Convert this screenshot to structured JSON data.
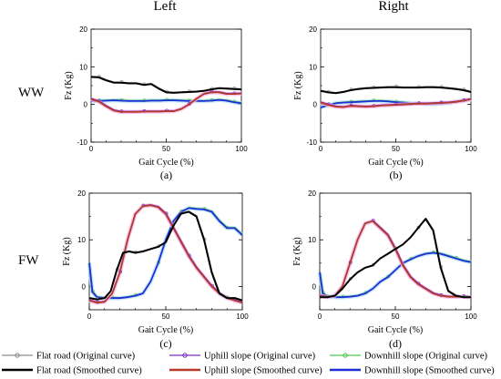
{
  "figure": {
    "column_titles": [
      "Left",
      "Right"
    ],
    "row_labels": [
      "WW",
      "FW"
    ],
    "panel_letters": [
      "a",
      "b",
      "c",
      "d"
    ]
  },
  "legend": [
    {
      "label": "Flat road (Original curve)",
      "color": "#8c8c8c",
      "marker": "circle"
    },
    {
      "label": "Uphill slope (Original curve)",
      "color": "#7a2fc0",
      "marker": "circle"
    },
    {
      "label": "Downhill slope (Original curve)",
      "color": "#4ec84e",
      "marker": "circle"
    },
    {
      "label": "Flat road (Smoothed curve)",
      "color": "#000000",
      "marker": "none"
    },
    {
      "label": "Uphill slope (Smoothed curve)",
      "color": "#b53a2a",
      "marker": "none"
    },
    {
      "label": "Downhill slope (Smoothed curve)",
      "color": "#1f2fd6",
      "marker": "none"
    }
  ],
  "chart_data": [
    {
      "type": "line",
      "panel": "a",
      "column": "Left",
      "row": "WW",
      "xlabel": "Gait Cycle (%)",
      "ylabel": "Fz (Kg)",
      "xlim": [
        0,
        100
      ],
      "ylim": [
        -10,
        20
      ],
      "xticks": [
        0,
        50,
        100
      ],
      "yticks": [
        -10,
        0,
        10,
        20
      ],
      "series": [
        {
          "name": "Flat road",
          "x": [
            0,
            5,
            10,
            15,
            20,
            25,
            30,
            35,
            40,
            45,
            50,
            55,
            60,
            65,
            70,
            75,
            80,
            85,
            90,
            95,
            100
          ],
          "y": [
            7.3,
            7.2,
            6.4,
            5.8,
            5.8,
            5.6,
            5.6,
            5.2,
            5.4,
            4.2,
            3.2,
            3.1,
            3.2,
            3.3,
            3.4,
            3.6,
            4.0,
            4.3,
            4.2,
            4.1,
            4.0
          ]
        },
        {
          "name": "Uphill slope",
          "x": [
            0,
            5,
            10,
            15,
            20,
            25,
            30,
            35,
            40,
            45,
            50,
            55,
            60,
            65,
            70,
            75,
            80,
            85,
            90,
            95,
            100
          ],
          "y": [
            1.4,
            0.8,
            -0.5,
            -1.6,
            -2.0,
            -2.0,
            -2.0,
            -1.9,
            -1.9,
            -1.9,
            -1.8,
            -1.8,
            -1.2,
            0.0,
            1.5,
            2.8,
            3.2,
            3.2,
            2.8,
            2.8,
            2.9
          ]
        },
        {
          "name": "Downhill slope",
          "x": [
            0,
            5,
            10,
            15,
            20,
            25,
            30,
            35,
            40,
            45,
            50,
            55,
            60,
            65,
            70,
            75,
            80,
            85,
            90,
            95,
            100
          ],
          "y": [
            0.9,
            0.9,
            1.0,
            1.1,
            1.0,
            0.9,
            0.9,
            0.9,
            1.0,
            1.0,
            1.1,
            1.1,
            1.0,
            0.9,
            0.9,
            0.9,
            1.0,
            1.2,
            1.0,
            0.6,
            0.3
          ]
        }
      ]
    },
    {
      "type": "line",
      "panel": "b",
      "column": "Right",
      "row": "WW",
      "xlabel": "Gait Cycle (%)",
      "ylabel": "Fz (Kg)",
      "xlim": [
        0,
        100
      ],
      "ylim": [
        -10,
        20
      ],
      "xticks": [
        0,
        50,
        100
      ],
      "yticks": [
        -10,
        0,
        10,
        20
      ],
      "series": [
        {
          "name": "Flat road",
          "x": [
            0,
            5,
            10,
            15,
            20,
            25,
            30,
            35,
            40,
            45,
            50,
            55,
            60,
            65,
            70,
            75,
            80,
            85,
            90,
            95,
            100
          ],
          "y": [
            3.6,
            3.2,
            3.0,
            3.3,
            3.8,
            4.1,
            4.3,
            4.4,
            4.5,
            4.6,
            4.6,
            4.5,
            4.5,
            4.5,
            4.6,
            4.6,
            4.5,
            4.3,
            4.1,
            3.8,
            3.3
          ]
        },
        {
          "name": "Uphill slope",
          "x": [
            0,
            5,
            10,
            15,
            20,
            25,
            30,
            35,
            40,
            45,
            50,
            55,
            60,
            65,
            70,
            75,
            80,
            85,
            90,
            95,
            100
          ],
          "y": [
            0.5,
            -0.1,
            -0.6,
            -0.7,
            -0.4,
            -0.5,
            -0.6,
            -0.5,
            -0.3,
            -0.2,
            -0.1,
            0.0,
            0.1,
            0.2,
            0.2,
            0.3,
            0.4,
            0.5,
            0.7,
            1.0,
            1.4
          ]
        },
        {
          "name": "Downhill slope",
          "x": [
            0,
            5,
            10,
            15,
            20,
            25,
            30,
            35,
            40,
            45,
            50,
            55,
            60,
            65,
            70,
            75,
            80,
            85,
            90,
            95,
            100
          ],
          "y": [
            -0.8,
            -0.2,
            0.3,
            0.5,
            0.6,
            0.7,
            0.8,
            0.9,
            0.9,
            0.8,
            0.6,
            0.5,
            0.3,
            0.2,
            0.1,
            0.1,
            0.2,
            0.4,
            0.7,
            1.0,
            1.4
          ]
        }
      ]
    },
    {
      "type": "line",
      "panel": "c",
      "column": "Left",
      "row": "FW",
      "xlabel": "Gait Cycle (%)",
      "ylabel": "Fz (Kg)",
      "xlim": [
        0,
        100
      ],
      "ylim": [
        -5,
        20
      ],
      "xticks": [
        0,
        50,
        100
      ],
      "yticks": [
        0,
        10,
        20
      ],
      "series": [
        {
          "name": "Flat road",
          "x": [
            0,
            5,
            10,
            14,
            18,
            22,
            26,
            30,
            35,
            40,
            45,
            50,
            55,
            60,
            65,
            70,
            75,
            80,
            85,
            90,
            95,
            100
          ],
          "y": [
            -2.5,
            -2.8,
            -2.5,
            -1.0,
            3.5,
            7.2,
            7.5,
            7.2,
            7.5,
            8.0,
            8.5,
            9.5,
            13.0,
            15.6,
            16.0,
            15.0,
            10.0,
            3.0,
            -1.5,
            -2.5,
            -2.5,
            -3.0
          ]
        },
        {
          "name": "Uphill slope",
          "x": [
            0,
            5,
            10,
            15,
            20,
            25,
            30,
            35,
            40,
            45,
            50,
            55,
            60,
            65,
            70,
            75,
            80,
            85,
            90,
            95,
            100
          ],
          "y": [
            -3.0,
            -3.5,
            -3.3,
            -1.5,
            3.0,
            10.0,
            15.5,
            17.2,
            17.4,
            17.0,
            15.5,
            12.5,
            9.5,
            6.5,
            4.0,
            2.0,
            0.0,
            -1.5,
            -2.5,
            -3.0,
            -3.5
          ]
        },
        {
          "name": "Downhill slope",
          "x": [
            0,
            2,
            5,
            10,
            15,
            20,
            25,
            30,
            35,
            40,
            45,
            50,
            55,
            60,
            65,
            70,
            75,
            80,
            85,
            90,
            95,
            100
          ],
          "y": [
            5.0,
            -1.2,
            -2.3,
            -2.5,
            -2.5,
            -2.5,
            -2.3,
            -2.0,
            -1.5,
            1.0,
            5.0,
            10.0,
            14.0,
            16.0,
            16.8,
            16.6,
            16.5,
            16.0,
            14.0,
            12.5,
            12.5,
            11.0
          ]
        }
      ]
    },
    {
      "type": "line",
      "panel": "d",
      "column": "Right",
      "row": "FW",
      "xlabel": "Gait Cycle (%)",
      "ylabel": "Fz (Kg)",
      "xlim": [
        0,
        100
      ],
      "ylim": [
        -5,
        20
      ],
      "xticks": [
        0,
        50,
        100
      ],
      "yticks": [
        0,
        10,
        20
      ],
      "series": [
        {
          "name": "Flat road",
          "x": [
            0,
            5,
            10,
            15,
            20,
            25,
            30,
            35,
            40,
            45,
            50,
            55,
            60,
            65,
            70,
            75,
            80,
            85,
            90,
            95,
            100
          ],
          "y": [
            -2.3,
            -2.3,
            -2.0,
            -0.5,
            1.5,
            3.0,
            4.0,
            4.5,
            6.0,
            7.0,
            8.0,
            9.0,
            10.5,
            12.5,
            14.5,
            12.0,
            4.0,
            -1.0,
            -2.0,
            -2.3,
            -2.3
          ]
        },
        {
          "name": "Uphill slope",
          "x": [
            0,
            5,
            10,
            15,
            20,
            25,
            30,
            35,
            40,
            45,
            50,
            55,
            60,
            65,
            70,
            75,
            80,
            85,
            90,
            95,
            100
          ],
          "y": [
            -2.0,
            -2.3,
            -2.0,
            0.0,
            5.0,
            10.0,
            13.5,
            14.0,
            12.5,
            11.0,
            8.0,
            4.5,
            2.0,
            0.5,
            -0.5,
            -1.5,
            -2.0,
            -2.2,
            -2.2,
            -2.2,
            -2.3
          ]
        },
        {
          "name": "Downhill slope",
          "x": [
            0,
            2,
            5,
            10,
            15,
            20,
            25,
            30,
            35,
            40,
            45,
            50,
            55,
            60,
            65,
            70,
            75,
            80,
            85,
            90,
            95,
            100
          ],
          "y": [
            3.0,
            -1.5,
            -2.2,
            -2.3,
            -2.3,
            -2.2,
            -2.0,
            -1.5,
            -0.5,
            1.0,
            2.0,
            3.5,
            5.0,
            5.8,
            6.5,
            7.0,
            7.2,
            7.0,
            6.5,
            6.0,
            5.5,
            5.2
          ]
        }
      ]
    }
  ]
}
